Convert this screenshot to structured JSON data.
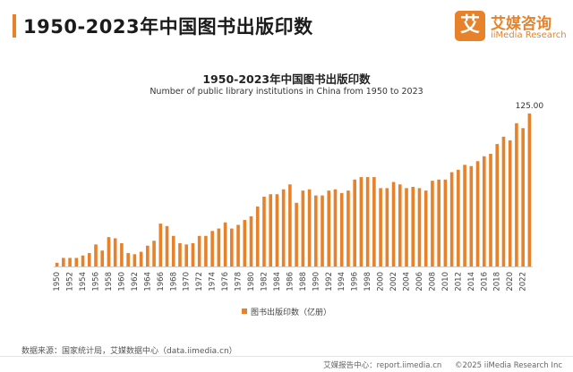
{
  "header": {
    "title": "1950-2023年中国图书出版印数"
  },
  "brand": {
    "mark": "艾",
    "name_cn": "艾媒咨询",
    "name_en": "iiMedia Research"
  },
  "chart_data": {
    "type": "bar",
    "title": "1950-2023年中国图书出版印数",
    "subtitle": "Number of public library institutions in China from 1950 to 2023",
    "categories": [
      "1950",
      "1951",
      "1952",
      "1953",
      "1954",
      "1955",
      "1956",
      "1957",
      "1958",
      "1959",
      "1960",
      "1961",
      "1962",
      "1963",
      "1964",
      "1965",
      "1966",
      "1967",
      "1968",
      "1969",
      "1970",
      "1971",
      "1972",
      "1973",
      "1974",
      "1975",
      "1976",
      "1977",
      "1978",
      "1979",
      "1980",
      "1981",
      "1982",
      "1983",
      "1984",
      "1985",
      "1986",
      "1987",
      "1988",
      "1989",
      "1990",
      "1991",
      "1992",
      "1993",
      "1994",
      "1995",
      "1996",
      "1997",
      "1998",
      "1999",
      "2000",
      "2001",
      "2002",
      "2003",
      "2004",
      "2005",
      "2006",
      "2007",
      "2008",
      "2009",
      "2010",
      "2011",
      "2012",
      "2013",
      "2014",
      "2015",
      "2016",
      "2017",
      "2018",
      "2019",
      "2020",
      "2021",
      "2022",
      "2023"
    ],
    "tick_labels": [
      "1950",
      "1952",
      "1954",
      "1956",
      "1958",
      "1960",
      "1962",
      "1964",
      "1966",
      "1968",
      "1970",
      "1972",
      "1974",
      "1976",
      "1978",
      "1980",
      "1982",
      "1984",
      "1986",
      "1988",
      "1990",
      "1992",
      "1994",
      "1996",
      "1998",
      "2000",
      "2002",
      "2004",
      "2006",
      "2008",
      "2010",
      "2012",
      "2014",
      "2016",
      "2018",
      "2020",
      "2022"
    ],
    "values": [
      3,
      7,
      7,
      7,
      9,
      11,
      18,
      13,
      24,
      23,
      19,
      11,
      10,
      12,
      17,
      21,
      35,
      33,
      25,
      19,
      18,
      19,
      25,
      25,
      29,
      31,
      36,
      31,
      34,
      38,
      41,
      49,
      57,
      59,
      59,
      63,
      67,
      52,
      62,
      63,
      58,
      58,
      62,
      63,
      60,
      62,
      71,
      73,
      73,
      73,
      64,
      64,
      69,
      67,
      64,
      65,
      64,
      62,
      70,
      71,
      71,
      77,
      79,
      83,
      82,
      86,
      90,
      92,
      100,
      106,
      103,
      117,
      113,
      125
    ],
    "value_label": {
      "year": "2023",
      "text": "125.00"
    },
    "legend": "图书出版印数（亿册）",
    "ylim": [
      0,
      130
    ],
    "color": "#e8822a",
    "grid": false
  },
  "source": {
    "text": "数据来源：国家统计局，艾媒数据中心（data.iimedia.cn）"
  },
  "footer": {
    "report": "艾媒报告中心：report.iimedia.cn",
    "copyright": "©2025 iiMedia Research Inc"
  }
}
